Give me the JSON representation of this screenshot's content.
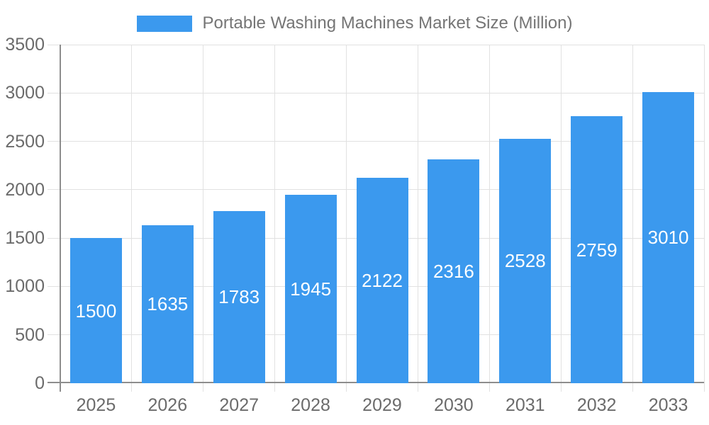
{
  "legend": {
    "label": "Portable Washing Machines Market Size (Million)"
  },
  "chart_data": {
    "type": "bar",
    "title": "Portable Washing Machines Market Size (Million)",
    "categories": [
      "2025",
      "2026",
      "2027",
      "2028",
      "2029",
      "2030",
      "2031",
      "2032",
      "2033"
    ],
    "values": [
      1500,
      1635,
      1783,
      1945,
      2122,
      2316,
      2528,
      2759,
      3010
    ],
    "series": [
      {
        "name": "Portable Washing Machines Market Size (Million)",
        "values": [
          1500,
          1635,
          1783,
          1945,
          2122,
          2316,
          2528,
          2759,
          3010
        ]
      }
    ],
    "xlabel": "",
    "ylabel": "",
    "ylim": [
      0,
      3500
    ],
    "yticks": [
      0,
      500,
      1000,
      1500,
      2000,
      2500,
      3000,
      3500
    ],
    "grid": true,
    "legend_position": "top",
    "value_labels": "centered-inside-bars-white",
    "colors": {
      "bar": "#3b99ee",
      "value_label": "#ffffff",
      "legend_text": "#757575",
      "tick_text": "#6b6b6b",
      "axis_line": "#8d8d8d",
      "grid_line": "#e1e1e1",
      "background": "#ffffff"
    }
  }
}
